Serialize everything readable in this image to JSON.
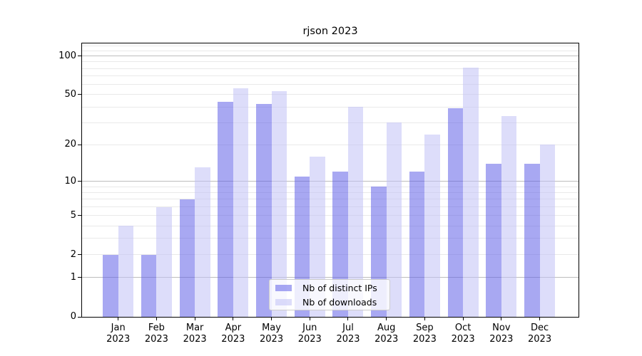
{
  "figure": {
    "title": "rjson 2023"
  },
  "chart_data": {
    "type": "bar",
    "title": "rjson 2023",
    "categories": [
      "Jan 2023",
      "Feb 2023",
      "Mar 2023",
      "Apr 2023",
      "May 2023",
      "Jun 2023",
      "Jul 2023",
      "Aug 2023",
      "Sep 2023",
      "Oct 2023",
      "Nov 2023",
      "Dec 2023"
    ],
    "series": [
      {
        "name": "Nb of distinct IPs",
        "color": "#a7a7f2",
        "fill": "rgba(96,96,232,0.55)",
        "values": [
          2,
          2,
          7,
          44,
          42,
          11,
          12,
          9,
          12,
          39,
          14,
          14
        ]
      },
      {
        "name": "Nb of downloads",
        "color": "#ddddfa",
        "fill": "rgba(193,193,246,0.55)",
        "values": [
          4,
          6,
          13,
          56,
          53,
          16,
          40,
          30,
          24,
          81,
          34,
          20
        ]
      }
    ],
    "yscale": "log1p",
    "ylim": [
      0,
      125
    ],
    "yticks": [
      0,
      1,
      2,
      5,
      10,
      20,
      50,
      100
    ],
    "grid": {
      "on": true,
      "major": [
        1,
        10,
        100
      ],
      "minor": [
        2,
        3,
        4,
        5,
        6,
        7,
        8,
        9,
        20,
        30,
        40,
        50,
        60,
        70,
        80,
        90,
        110,
        120
      ],
      "major_color": "#bdbdbd",
      "minor_color": "#e9e9e9"
    },
    "axis_color": "#000000",
    "legend": {
      "position": "lower center",
      "entries": [
        "Nb of distinct IPs",
        "Nb of downloads"
      ]
    }
  }
}
